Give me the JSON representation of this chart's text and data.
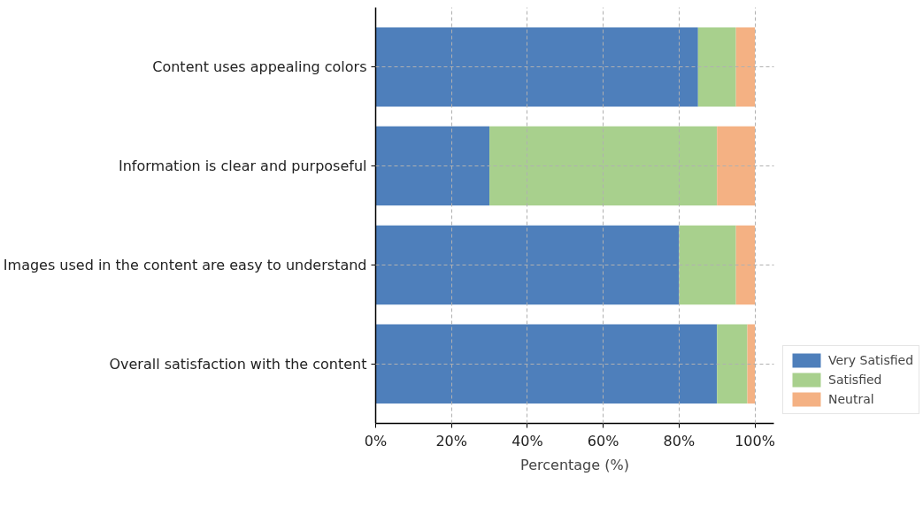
{
  "chart_data": {
    "type": "bar",
    "orientation": "horizontal",
    "stacked": true,
    "xlabel": "Percentage (%)",
    "categories": [
      "Content uses appealing colors",
      "Information is clear and purposeful",
      "Images used in the content are easy to understand",
      "Overall satisfaction with the content"
    ],
    "series": [
      {
        "name": "Very Satisfied",
        "color": "#4e7fbb",
        "values": [
          85,
          30,
          80,
          90
        ]
      },
      {
        "name": "Satisfied",
        "color": "#a8d08d",
        "values": [
          10,
          60,
          15,
          8
        ]
      },
      {
        "name": "Neutral",
        "color": "#f4b183",
        "values": [
          5,
          10,
          5,
          2
        ]
      }
    ],
    "xlim": [
      0,
      105
    ],
    "xticks": [
      {
        "value": 0,
        "label": "0%"
      },
      {
        "value": 20,
        "label": "20%"
      },
      {
        "value": 40,
        "label": "40%"
      },
      {
        "value": 60,
        "label": "60%"
      },
      {
        "value": 80,
        "label": "80%"
      },
      {
        "value": 100,
        "label": "100%"
      }
    ],
    "grid": true,
    "legend": "bottom right"
  }
}
